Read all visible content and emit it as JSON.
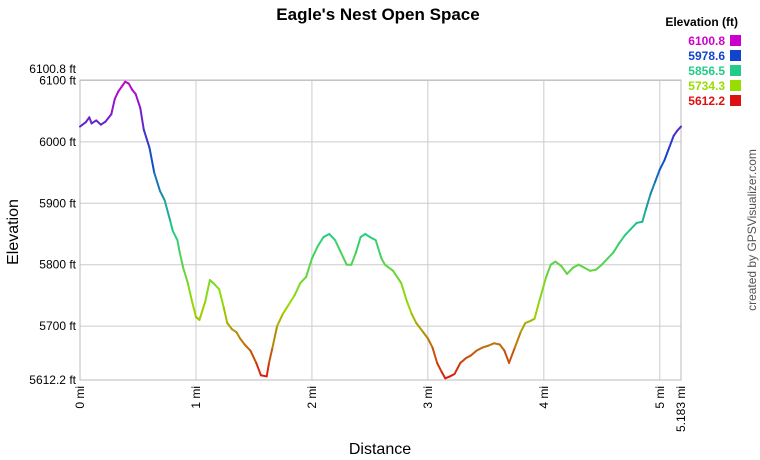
{
  "chart_data": {
    "type": "line",
    "title": "Eagle's Nest Open Space",
    "xlabel": "Distance",
    "ylabel": "Elevation",
    "xlim": [
      0,
      5.183
    ],
    "ylim": [
      5612.2,
      6100.8
    ],
    "x_ticks": [
      {
        "value": 0,
        "label": "0 mi"
      },
      {
        "value": 1,
        "label": "1 mi"
      },
      {
        "value": 2,
        "label": "2 mi"
      },
      {
        "value": 3,
        "label": "3 mi"
      },
      {
        "value": 4,
        "label": "4 mi"
      },
      {
        "value": 5,
        "label": "5 mi"
      },
      {
        "value": 5.183,
        "label": "5.183 mi"
      }
    ],
    "y_ticks": [
      {
        "value": 5612.2,
        "label": "5612.2 ft"
      },
      {
        "value": 5700,
        "label": "5700 ft"
      },
      {
        "value": 5800,
        "label": "5800 ft"
      },
      {
        "value": 5900,
        "label": "5900 ft"
      },
      {
        "value": 6000,
        "label": "6000 ft"
      },
      {
        "value": 6100,
        "label": "6100 ft"
      },
      {
        "value": 6100.8,
        "label": "6100.8 ft"
      }
    ],
    "grid": true,
    "legend": {
      "title": "Elevation (ft)",
      "placement": "top-right",
      "entries": [
        {
          "label": "6100.8",
          "color": "#cc00cc"
        },
        {
          "label": "5978.6",
          "color": "#1144cc"
        },
        {
          "label": "5856.5",
          "color": "#22cc88"
        },
        {
          "label": "5734.3",
          "color": "#99dd00"
        },
        {
          "label": "5612.2",
          "color": "#dd1111"
        }
      ]
    },
    "credit": "created by GPSVisualizer.com",
    "series": [
      {
        "x": [
          0,
          0.05,
          0.08,
          0.1,
          0.14,
          0.18,
          0.22,
          0.27,
          0.3,
          0.33,
          0.36,
          0.39,
          0.42,
          0.45,
          0.48,
          0.52,
          0.55,
          0.6,
          0.64,
          0.69,
          0.73,
          0.78,
          0.8,
          0.84,
          0.86,
          0.89,
          0.93,
          0.96,
          1.0,
          1.03,
          1.08,
          1.12,
          1.15,
          1.2,
          1.24,
          1.27,
          1.31,
          1.35,
          1.38,
          1.42,
          1.47,
          1.52,
          1.56,
          1.61,
          1.63,
          1.66,
          1.7,
          1.75,
          1.8,
          1.85,
          1.9,
          1.95,
          2.0,
          2.05,
          2.1,
          2.15,
          2.2,
          2.25,
          2.3,
          2.34,
          2.38,
          2.42,
          2.46,
          2.5,
          2.55,
          2.6,
          2.63,
          2.7,
          2.77,
          2.82,
          2.86,
          2.9,
          2.96,
          3.0,
          3.04,
          3.08,
          3.12,
          3.15,
          3.19,
          3.23,
          3.28,
          3.33,
          3.37,
          3.42,
          3.47,
          3.52,
          3.57,
          3.62,
          3.66,
          3.7,
          3.75,
          3.8,
          3.84,
          3.88,
          3.92,
          3.96,
          4.02,
          4.06,
          4.1,
          4.15,
          4.2,
          4.25,
          4.3,
          4.35,
          4.4,
          4.45,
          4.5,
          4.55,
          4.6,
          4.65,
          4.7,
          4.75,
          4.8,
          4.85,
          4.88,
          4.92,
          4.96,
          5.0,
          5.04,
          5.08,
          5.12,
          5.15,
          5.183
        ],
        "y": [
          6025,
          6032,
          6040,
          6030,
          6035,
          6028,
          6033,
          6045,
          6070,
          6082,
          6090,
          6098,
          6095,
          6085,
          6078,
          6055,
          6020,
          5990,
          5950,
          5920,
          5905,
          5870,
          5855,
          5840,
          5820,
          5795,
          5770,
          5745,
          5715,
          5710,
          5740,
          5775,
          5770,
          5760,
          5730,
          5705,
          5695,
          5690,
          5680,
          5670,
          5660,
          5640,
          5620,
          5618,
          5640,
          5665,
          5700,
          5720,
          5735,
          5750,
          5770,
          5780,
          5810,
          5830,
          5845,
          5850,
          5840,
          5820,
          5800,
          5800,
          5820,
          5845,
          5850,
          5845,
          5840,
          5810,
          5800,
          5790,
          5770,
          5740,
          5720,
          5705,
          5690,
          5680,
          5665,
          5640,
          5625,
          5615,
          5618,
          5622,
          5640,
          5648,
          5652,
          5660,
          5665,
          5668,
          5672,
          5670,
          5660,
          5640,
          5665,
          5690,
          5705,
          5708,
          5712,
          5740,
          5780,
          5800,
          5805,
          5798,
          5785,
          5795,
          5800,
          5795,
          5790,
          5792,
          5800,
          5810,
          5820,
          5835,
          5848,
          5858,
          5868,
          5870,
          5890,
          5915,
          5935,
          5955,
          5970,
          5990,
          6010,
          6018,
          6025
        ]
      }
    ]
  }
}
